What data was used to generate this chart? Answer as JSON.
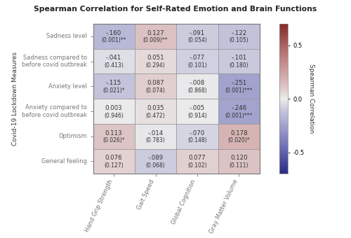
{
  "title": "Spearman Correlation for Self-Rated Emotion and Brain Functions",
  "ylabel": "Covid-19 Lockdown Measures",
  "colorbar_label": "Spearman Correlation",
  "rows": [
    "Sadness level",
    "Sadness compared to\nbefore covid outbreak",
    "Anxiety level",
    "Anxiety compared to\nbefore covid outbreak",
    "Optimism",
    "General feeling"
  ],
  "cols": [
    "Hand Grip Strength",
    "Gait Speed",
    "Global Cognition",
    "Gray Matter Volume"
  ],
  "values": [
    [
      -0.16,
      0.127,
      -0.091,
      -0.122
    ],
    [
      -0.041,
      0.051,
      -0.077,
      -0.101
    ],
    [
      -0.115,
      0.087,
      -0.008,
      -0.251
    ],
    [
      0.003,
      0.035,
      -0.005,
      -0.246
    ],
    [
      0.113,
      -0.014,
      -0.07,
      0.178
    ],
    [
      0.076,
      -0.089,
      0.077,
      0.12
    ]
  ],
  "cell_text_line1": [
    [
      "-.160",
      "0.127",
      "-.091",
      "-.122"
    ],
    [
      "-.041",
      "0.051",
      "-.077",
      "-.101"
    ],
    [
      "-.115",
      "0.087",
      "-.008",
      "-.251"
    ],
    [
      "0.003",
      "0.035",
      "-.005",
      "-.246"
    ],
    [
      "0.113",
      "-.014",
      "-.070",
      "0.178"
    ],
    [
      "0.076",
      "-.089",
      "0.077",
      "0.120"
    ]
  ],
  "cell_text_line2": [
    [
      "(0.001)**",
      "(0.009)**",
      "(0.054)",
      "(0.105)"
    ],
    [
      "(0.413)",
      "(0.294)",
      "(0.101)",
      "(0.180)"
    ],
    [
      "(0.021)*",
      "(0.074)",
      "(0.868)",
      "(0.001)***"
    ],
    [
      "(0.946)",
      "(0.472)",
      "(0.914)",
      "(0.001)***"
    ],
    [
      "(0.026)*",
      "(0.783)",
      "(0.148)",
      "(0.020)*"
    ],
    [
      "(0.127)",
      "(0.068)",
      "(0.102)",
      "(0.111)"
    ]
  ],
  "vmin": -0.7,
  "vmax": 0.7,
  "cbar_ticks": [
    0.5,
    0.0,
    -0.5
  ],
  "cbar_ticklabels": [
    "0.5",
    "0.0",
    "-0.5"
  ],
  "cell_text_color": "#333333",
  "grid_color": "#999999",
  "spine_color": "#777777"
}
